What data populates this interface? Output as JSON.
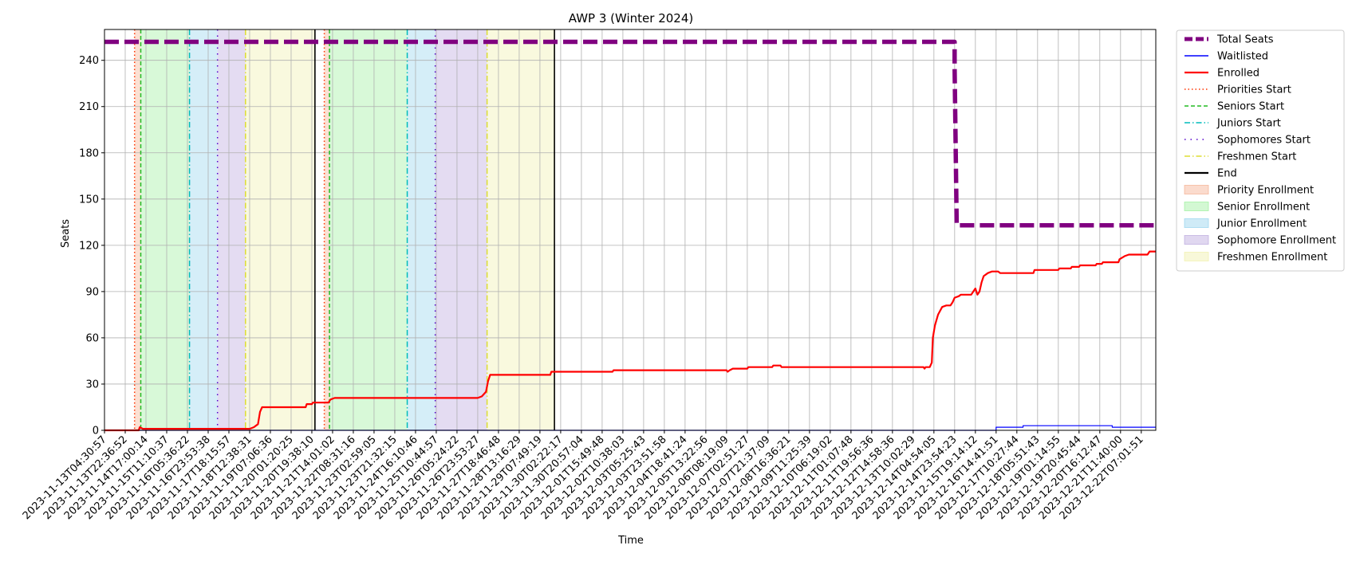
{
  "chart_data": {
    "type": "line",
    "title": "AWP 3 (Winter 2024)",
    "xlabel": "Time",
    "ylabel": "Seats",
    "ylim": [
      0,
      260
    ],
    "yticks": [
      0,
      30,
      60,
      90,
      120,
      150,
      180,
      210,
      240
    ],
    "grid": true,
    "legend_position": "outside right",
    "x_tick_labels": [
      "2023-11-13T04:30:57",
      "2023-11-13T22:36:52",
      "2023-11-14T17:00:14",
      "2023-11-15T11:10:37",
      "2023-11-16T05:36:22",
      "2023-11-16T23:53:38",
      "2023-11-17T18:15:57",
      "2023-11-18T12:38:31",
      "2023-11-19T07:06:36",
      "2023-11-20T01:20:25",
      "2023-11-20T19:38:10",
      "2023-11-21T14:01:02",
      "2023-11-22T08:31:16",
      "2023-11-23T02:59:05",
      "2023-11-23T21:32:15",
      "2023-11-24T16:10:46",
      "2023-11-25T10:44:57",
      "2023-11-26T05:24:22",
      "2023-11-26T23:53:27",
      "2023-11-27T18:46:48",
      "2023-11-28T13:16:29",
      "2023-11-29T07:49:19",
      "2023-11-30T02:22:17",
      "2023-11-30T20:57:04",
      "2023-12-01T15:49:48",
      "2023-12-02T10:38:03",
      "2023-12-03T05:25:43",
      "2023-12-03T23:51:58",
      "2023-12-04T18:41:24",
      "2023-12-05T13:22:56",
      "2023-12-06T08:19:09",
      "2023-12-07T02:51:27",
      "2023-12-07T21:37:09",
      "2023-12-08T16:36:21",
      "2023-12-09T11:25:39",
      "2023-12-10T06:19:02",
      "2023-12-11T01:07:48",
      "2023-12-11T19:56:36",
      "2023-12-12T14:58:36",
      "2023-12-13T10:02:29",
      "2023-12-14T04:54:05",
      "2023-12-14T23:54:23",
      "2023-12-15T19:14:12",
      "2023-12-16T14:41:51",
      "2023-12-17T10:27:44",
      "2023-12-18T05:51:43",
      "2023-12-19T01:14:55",
      "2023-12-19T20:45:44",
      "2023-12-20T16:12:47",
      "2023-12-21T11:40:00",
      "2023-12-22T07:01:51"
    ],
    "series": [
      {
        "name": "Total Seats",
        "color": "#800080",
        "style": "dashed-thick",
        "points": [
          [
            0,
            252
          ],
          [
            41.0,
            252
          ],
          [
            41.0,
            235
          ],
          [
            41.1,
            133
          ],
          [
            50.7,
            133
          ]
        ]
      },
      {
        "name": "Waitlisted",
        "color": "#0000ff",
        "style": "solid-thin",
        "points": [
          [
            0,
            0
          ],
          [
            43.0,
            0
          ],
          [
            43.0,
            2
          ],
          [
            44.3,
            2
          ],
          [
            44.3,
            3
          ],
          [
            48.6,
            3
          ],
          [
            48.6,
            2
          ],
          [
            50.7,
            2
          ]
        ]
      },
      {
        "name": "Enrolled",
        "color": "#ff0000",
        "style": "solid",
        "points": [
          [
            0,
            0
          ],
          [
            1.65,
            0
          ],
          [
            1.7,
            2
          ],
          [
            1.85,
            1
          ],
          [
            7.0,
            1
          ],
          [
            7.2,
            2
          ],
          [
            7.4,
            4
          ],
          [
            7.5,
            12
          ],
          [
            7.6,
            15
          ],
          [
            9.7,
            15
          ],
          [
            9.75,
            17
          ],
          [
            10.0,
            17
          ],
          [
            10.05,
            18
          ],
          [
            10.8,
            18
          ],
          [
            10.9,
            20
          ],
          [
            11.1,
            21
          ],
          [
            18.0,
            21
          ],
          [
            18.2,
            22
          ],
          [
            18.4,
            25
          ],
          [
            18.5,
            32
          ],
          [
            18.6,
            36
          ],
          [
            21.5,
            36
          ],
          [
            21.55,
            38
          ],
          [
            24.5,
            38
          ],
          [
            24.55,
            39
          ],
          [
            30.0,
            39
          ],
          [
            30.05,
            38
          ],
          [
            30.15,
            39
          ],
          [
            30.3,
            40
          ],
          [
            31.0,
            40
          ],
          [
            31.05,
            41
          ],
          [
            32.2,
            41
          ],
          [
            32.25,
            42
          ],
          [
            32.6,
            42
          ],
          [
            32.65,
            41
          ],
          [
            39.5,
            41
          ],
          [
            39.55,
            40
          ],
          [
            39.6,
            41
          ],
          [
            39.8,
            41
          ],
          [
            39.9,
            44
          ],
          [
            39.95,
            60
          ],
          [
            40.05,
            68
          ],
          [
            40.2,
            75
          ],
          [
            40.4,
            80
          ],
          [
            40.6,
            81
          ],
          [
            40.8,
            81
          ],
          [
            40.9,
            83
          ],
          [
            41.0,
            86
          ],
          [
            41.2,
            87
          ],
          [
            41.3,
            88
          ],
          [
            41.8,
            88
          ],
          [
            41.9,
            90
          ],
          [
            42.0,
            92
          ],
          [
            42.1,
            88
          ],
          [
            42.2,
            90
          ],
          [
            42.3,
            96
          ],
          [
            42.4,
            100
          ],
          [
            42.6,
            102
          ],
          [
            42.8,
            103
          ],
          [
            43.1,
            103
          ],
          [
            43.2,
            102
          ],
          [
            44.8,
            102
          ],
          [
            44.85,
            104
          ],
          [
            46.0,
            104
          ],
          [
            46.05,
            105
          ],
          [
            46.6,
            105
          ],
          [
            46.65,
            106
          ],
          [
            47.0,
            106
          ],
          [
            47.05,
            107
          ],
          [
            47.8,
            107
          ],
          [
            47.85,
            108
          ],
          [
            48.1,
            108
          ],
          [
            48.15,
            109
          ],
          [
            48.9,
            109
          ],
          [
            48.95,
            111
          ],
          [
            49.2,
            113
          ],
          [
            49.4,
            114
          ],
          [
            50.3,
            114
          ],
          [
            50.4,
            116
          ],
          [
            50.7,
            116
          ]
        ]
      }
    ],
    "vertical_markers": [
      {
        "name": "Priorities Start",
        "color": "#ff3300",
        "style": "dotted",
        "x": [
          1.45,
          10.6
        ]
      },
      {
        "name": "Seniors Start",
        "color": "#22bb22",
        "style": "dashed",
        "x": [
          1.75,
          10.85
        ]
      },
      {
        "name": "Juniors Start",
        "color": "#00bbbb",
        "style": "dashdot",
        "x": [
          4.1,
          14.6
        ]
      },
      {
        "name": "Sophomores Start",
        "color": "#5500cc",
        "style": "loosedot",
        "x": [
          5.45,
          15.95
        ]
      },
      {
        "name": "Freshmen Start",
        "color": "#dddd33",
        "style": "dashdot",
        "x": [
          6.8,
          18.45
        ]
      },
      {
        "name": "End",
        "color": "#000000",
        "style": "solid",
        "x": [
          10.15,
          21.7
        ]
      }
    ],
    "shaded_regions": [
      {
        "name": "Priority Enrollment",
        "color": "#f4a582",
        "spans": [
          [
            1.45,
            1.75
          ],
          [
            10.6,
            10.85
          ]
        ]
      },
      {
        "name": "Senior Enrollment",
        "color": "#90ee90",
        "spans": [
          [
            1.75,
            4.1
          ],
          [
            10.85,
            14.6
          ]
        ]
      },
      {
        "name": "Junior Enrollment",
        "color": "#87ceeb",
        "spans": [
          [
            4.1,
            5.45
          ],
          [
            14.6,
            15.95
          ]
        ]
      },
      {
        "name": "Sophomore Enrollment",
        "color": "#b19cd9",
        "spans": [
          [
            5.45,
            6.8
          ],
          [
            15.95,
            18.45
          ]
        ]
      },
      {
        "name": "Freshmen Enrollment",
        "color": "#eeeea0",
        "spans": [
          [
            6.8,
            10.15
          ],
          [
            18.45,
            21.7
          ]
        ]
      }
    ],
    "legend": [
      "Total Seats",
      "Waitlisted",
      "Enrolled",
      "Priorities Start",
      "Seniors Start",
      "Juniors Start",
      "Sophomores Start",
      "Freshmen Start",
      "End",
      "Priority Enrollment",
      "Senior Enrollment",
      "Junior Enrollment",
      "Sophomore Enrollment",
      "Freshmen Enrollment"
    ]
  }
}
